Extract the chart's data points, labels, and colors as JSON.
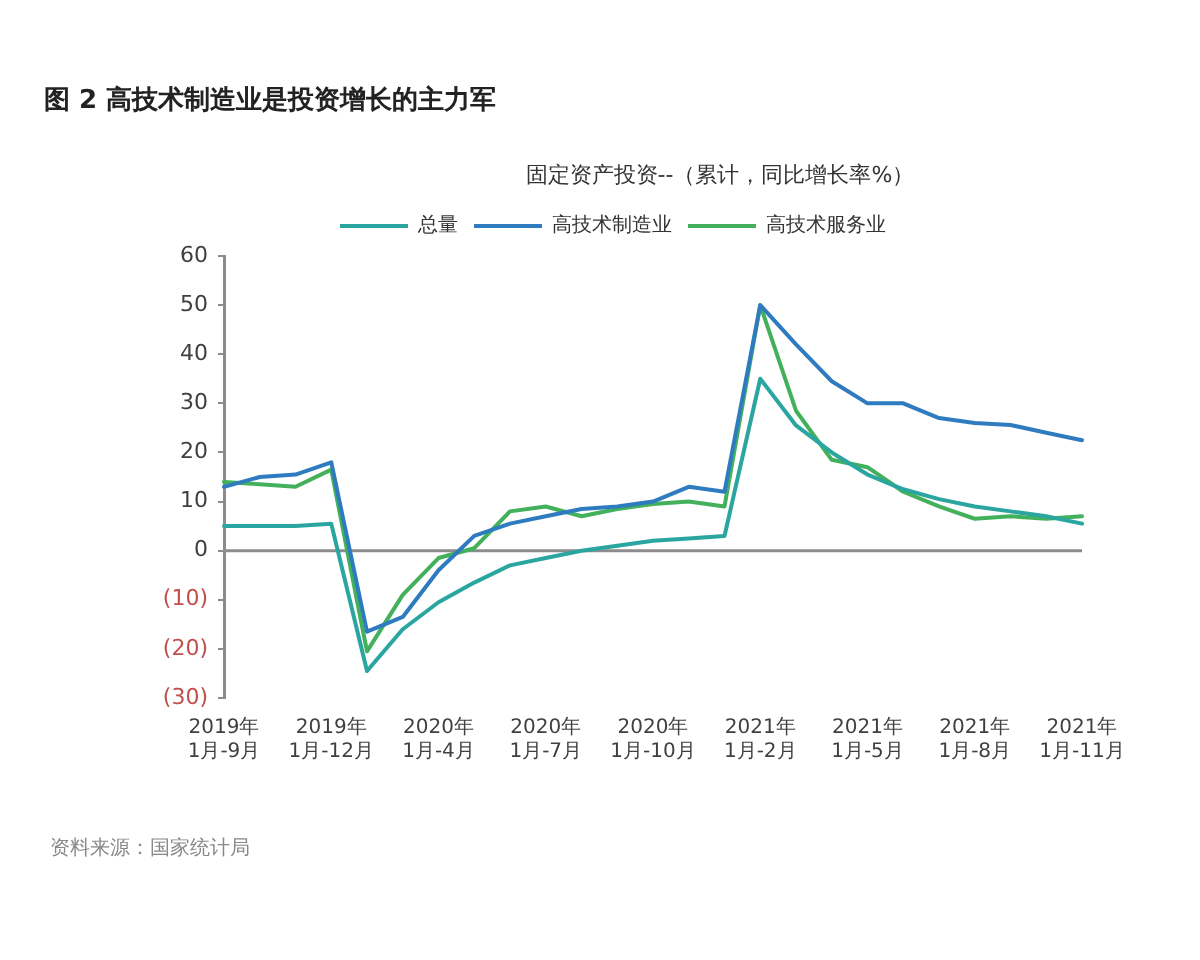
{
  "chart_data": {
    "type": "line",
    "title": "图 2 高技术制造业是投资增长的主力军",
    "subtitle": "固定资产投资--（累计，同比增长率%）",
    "annotations": [
      "资料来源：国家统计局"
    ],
    "categories": [
      "2019年\n1月-9月",
      null,
      null,
      "2019年\n1月-12月",
      null,
      null,
      "2020年\n1月-4月",
      null,
      null,
      "2020年\n1月-7月",
      null,
      null,
      "2020年\n1月-10月",
      null,
      null,
      "2021年\n1月-2月",
      null,
      null,
      "2021年\n1月-5月",
      null,
      null,
      "2021年\n1月-8月",
      null,
      null,
      "2021年\n1月-11月"
    ],
    "series": [
      {
        "name": "总量",
        "color": "#2aa5a0",
        "values": [
          5,
          5,
          5,
          5.5,
          -24.5,
          -16,
          -10.5,
          -6.5,
          -3,
          -1.5,
          0,
          1,
          2,
          2.5,
          3,
          35,
          25.5,
          20,
          15.5,
          12.5,
          10.5,
          9,
          8,
          7,
          5.5
        ]
      },
      {
        "name": "高技术制造业",
        "color": "#2e7cbf",
        "values": [
          13,
          15,
          15.5,
          18,
          -16.5,
          -13.5,
          -4,
          3,
          5.5,
          7,
          8.5,
          9,
          10,
          13,
          12,
          50,
          42,
          34.5,
          30,
          30,
          27,
          26,
          25.6,
          24,
          22.5
        ]
      },
      {
        "name": "高技术服务业",
        "color": "#43b05c",
        "values": [
          14,
          13.5,
          13,
          16.5,
          -20.5,
          -9,
          -1.5,
          0.5,
          8,
          9,
          7,
          8.5,
          9.5,
          10,
          9,
          50,
          28.5,
          18.5,
          17,
          12,
          9,
          6.5,
          7,
          6.5,
          7
        ]
      }
    ],
    "ylim": [
      -30,
      60
    ],
    "yticks": [
      {
        "value": -30,
        "label": "(30)"
      },
      {
        "value": -20,
        "label": "(20)"
      },
      {
        "value": -10,
        "label": "(10)"
      },
      0,
      10,
      20,
      30,
      40,
      50,
      60
    ],
    "ref_lines": [
      {
        "axis": "y",
        "value": 0,
        "color": "#8c8c8c"
      }
    ],
    "grid": false,
    "legend": "top",
    "marker": "none",
    "line_style": "solid"
  }
}
